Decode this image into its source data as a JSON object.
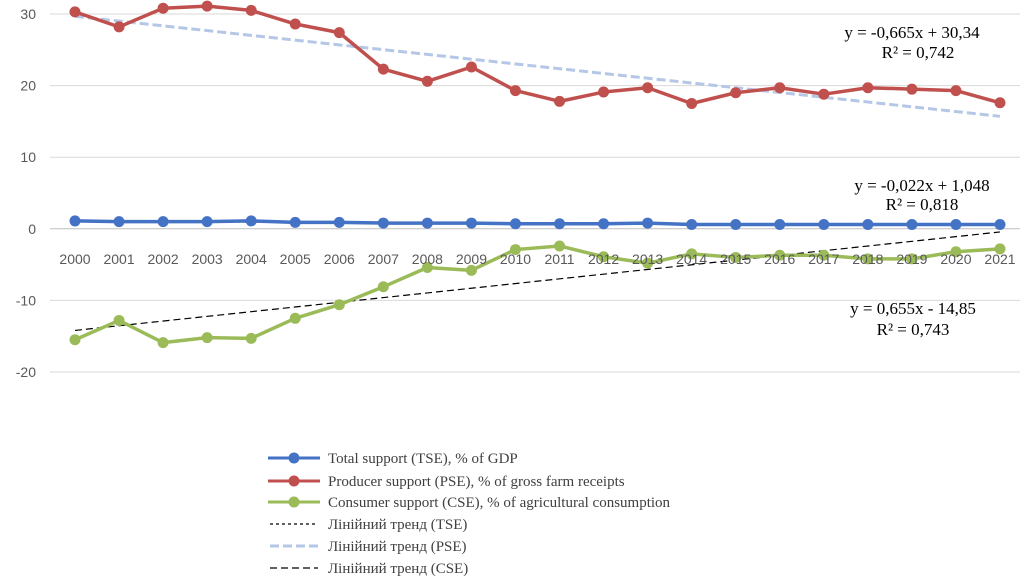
{
  "chart_data": {
    "type": "line",
    "categories": [
      "2000",
      "2001",
      "2002",
      "2003",
      "2004",
      "2005",
      "2006",
      "2007",
      "2008",
      "2009",
      "2010",
      "2011",
      "2012",
      "2013",
      "2014",
      "2015",
      "2016",
      "2017",
      "2018",
      "2019",
      "2020",
      "2021"
    ],
    "ylim": [
      -20,
      30
    ],
    "yticks": [
      30,
      20,
      10,
      0,
      -10,
      -20
    ],
    "grid": true,
    "legend_position": "bottom",
    "series": [
      {
        "name": "Total support (TSE), % of GDP",
        "color": "#4472C4",
        "values": [
          1.1,
          1.0,
          1.0,
          1.0,
          1.1,
          0.9,
          0.9,
          0.8,
          0.8,
          0.8,
          0.7,
          0.7,
          0.7,
          0.8,
          0.6,
          0.6,
          0.6,
          0.6,
          0.6,
          0.6,
          0.6,
          0.6
        ]
      },
      {
        "name": "Producer support (PSE), % of gross farm receipts",
        "color": "#C0504D",
        "values": [
          30.3,
          28.2,
          30.8,
          31.1,
          30.5,
          28.6,
          27.4,
          22.3,
          20.6,
          22.6,
          19.3,
          17.8,
          19.1,
          19.7,
          17.5,
          19.0,
          19.7,
          18.8,
          19.7,
          19.5,
          19.3,
          17.6
        ]
      },
      {
        "name": "Consumer support (CSE), % of agricultural consumption",
        "color": "#9BBB59",
        "values": [
          -15.5,
          -12.8,
          -15.9,
          -15.2,
          -15.3,
          -12.5,
          -10.6,
          -8.1,
          -5.4,
          -5.8,
          -2.9,
          -2.4,
          -3.9,
          -4.8,
          -3.5,
          -4.0,
          -3.7,
          -3.7,
          -4.2,
          -4.2,
          -3.2,
          -2.8
        ]
      }
    ],
    "trendlines": [
      {
        "name": "Лінійний тренд (TSE)",
        "color": "#000000",
        "style": "dotted",
        "slope": -0.022,
        "intercept": 1.048,
        "equation": "y = -0,022x + 1,048",
        "r2": "R² = 0,818"
      },
      {
        "name": "Лінійний тренд (PSE)",
        "color": "#B4C7E7",
        "style": "dashed-thick",
        "slope": -0.665,
        "intercept": 30.34,
        "equation": "y = -0,665x + 30,34",
        "r2": "R² = 0,742"
      },
      {
        "name": "Лінійний тренд (CSE)",
        "color": "#000000",
        "style": "dashed",
        "slope": 0.655,
        "intercept": -14.85,
        "equation": "y = 0,655x - 14,85",
        "r2": "R² = 0,743"
      }
    ]
  }
}
